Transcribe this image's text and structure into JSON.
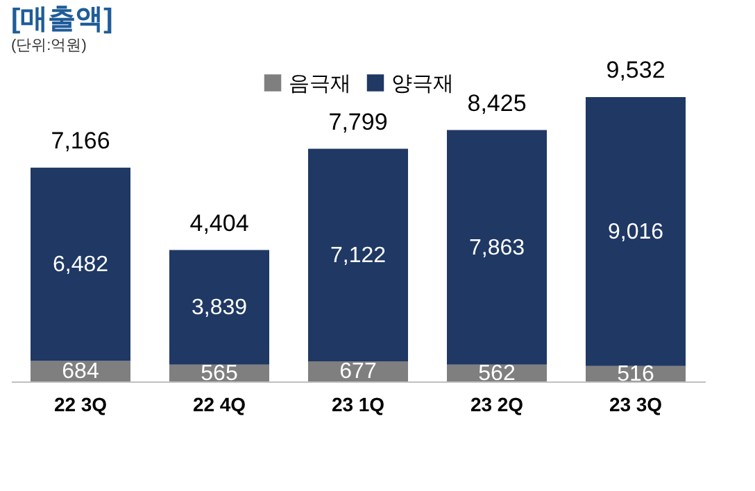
{
  "chart_data": {
    "type": "bar",
    "title": "[매출액]",
    "subtitle": "(단위:억원)",
    "categories": [
      "22 3Q",
      "22 4Q",
      "23 1Q",
      "23 2Q",
      "23 3Q"
    ],
    "stacked": true,
    "series": [
      {
        "name": "음극재",
        "color": "#7f7f7f",
        "values": [
          684,
          565,
          677,
          562,
          516
        ],
        "value_labels": [
          "684",
          "565",
          "677",
          "562",
          "516"
        ]
      },
      {
        "name": "양극재",
        "color": "#1f3864",
        "values": [
          6482,
          3839,
          7122,
          7863,
          9016
        ],
        "value_labels": [
          "6,482",
          "3,839",
          "7,122",
          "7,863",
          "9,016"
        ]
      }
    ],
    "totals": [
      "7,166",
      "4,404",
      "7,799",
      "8,425",
      "9,532"
    ],
    "legend": "top",
    "grid": false
  }
}
